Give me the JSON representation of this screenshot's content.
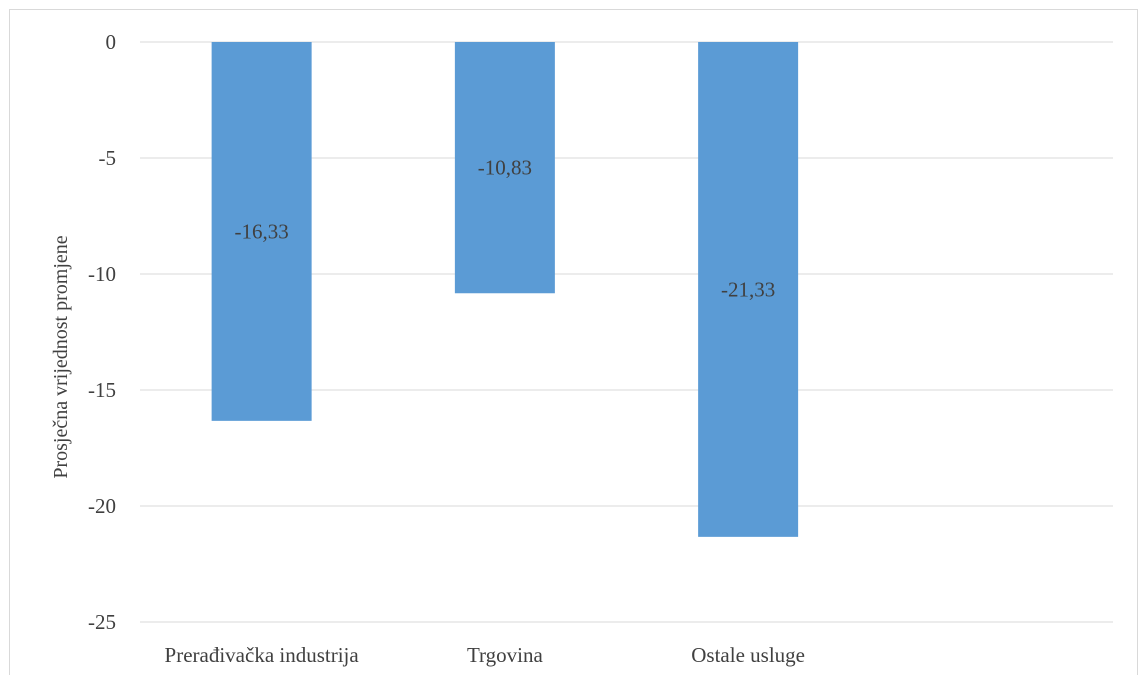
{
  "chart_data": {
    "type": "bar",
    "categories": [
      "Prerađivačka industrija",
      "Trgovina",
      "Ostale usluge"
    ],
    "values": [
      -16.33,
      -10.83,
      -21.33
    ],
    "data_labels": [
      "-16,33",
      "-10,83",
      "-21,33"
    ],
    "ylabel": "Prosječna vrijednost promjene",
    "ylim": [
      -25,
      0
    ],
    "yticks": [
      0,
      -5,
      -10,
      -15,
      -20,
      -25
    ],
    "ytick_labels": [
      "0",
      "-5",
      "-10",
      "-15",
      "-20",
      "-25"
    ],
    "grid": true,
    "bar_color": "#5b9bd5"
  }
}
